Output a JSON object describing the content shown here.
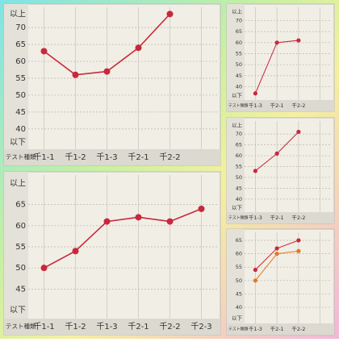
{
  "chart_data": [
    {
      "type": "line",
      "xlabel": "テスト種類",
      "categories": [
        "千1-1",
        "千1-2",
        "千1-3",
        "千2-1",
        "千2-2",
        null
      ],
      "series": [
        {
          "color": "#c8283c",
          "values": [
            63,
            56,
            57,
            64,
            74,
            null
          ]
        }
      ],
      "ylim": [
        34,
        76
      ],
      "yticks": [
        {
          "value": 74,
          "label": "以上"
        },
        70,
        65,
        60,
        55,
        50,
        45,
        40,
        {
          "value": 36,
          "label": "以下"
        }
      ],
      "grid": true
    },
    {
      "type": "line",
      "xlabel": "テスト種類",
      "categories": [
        "千1-1",
        "千1-2",
        "千1-3",
        "千2-1",
        "千2-2",
        "千2-3"
      ],
      "series": [
        {
          "color": "#c8283c",
          "values": [
            50,
            54,
            61,
            62,
            61,
            64
          ]
        }
      ],
      "ylim": [
        38,
        72
      ],
      "yticks": [
        {
          "value": 70,
          "label": "以上"
        },
        65,
        60,
        55,
        50,
        45,
        {
          "value": 40,
          "label": "以下"
        }
      ],
      "grid": true
    },
    {
      "type": "line",
      "xlabel": "テスト種類",
      "categories": [
        "千1-3",
        "千2-1",
        "千2-2",
        null
      ],
      "series": [
        {
          "color": "#c8283c",
          "values": [
            37,
            60,
            61,
            null
          ]
        }
      ],
      "ylim": [
        34,
        76
      ],
      "yticks": [
        {
          "value": 74,
          "label": "以上"
        },
        70,
        65,
        60,
        55,
        50,
        45,
        40,
        {
          "value": 36,
          "label": "以下"
        }
      ],
      "grid": true
    },
    {
      "type": "line",
      "xlabel": "テスト種類",
      "categories": [
        "千1-3",
        "千2-1",
        "千2-2",
        null
      ],
      "series": [
        {
          "color": "#c8283c",
          "values": [
            53,
            61,
            71,
            null
          ]
        }
      ],
      "ylim": [
        34,
        76
      ],
      "yticks": [
        {
          "value": 74,
          "label": "以上"
        },
        70,
        65,
        60,
        55,
        50,
        45,
        40,
        {
          "value": 36,
          "label": "以下"
        }
      ],
      "grid": true
    },
    {
      "type": "line",
      "xlabel": "テスト種類",
      "categories": [
        "千1-3",
        "千2-1",
        "千2-2",
        null
      ],
      "series": [
        {
          "color": "#c8283c",
          "values": [
            54,
            62,
            65,
            null
          ]
        },
        {
          "color": "#e07a20",
          "values": [
            50,
            60,
            61,
            null
          ]
        }
      ],
      "ylim": [
        34,
        68
      ],
      "yticks": [
        65,
        60,
        55,
        50,
        45,
        40,
        {
          "value": 36,
          "label": "以下"
        }
      ],
      "grid": true
    }
  ]
}
